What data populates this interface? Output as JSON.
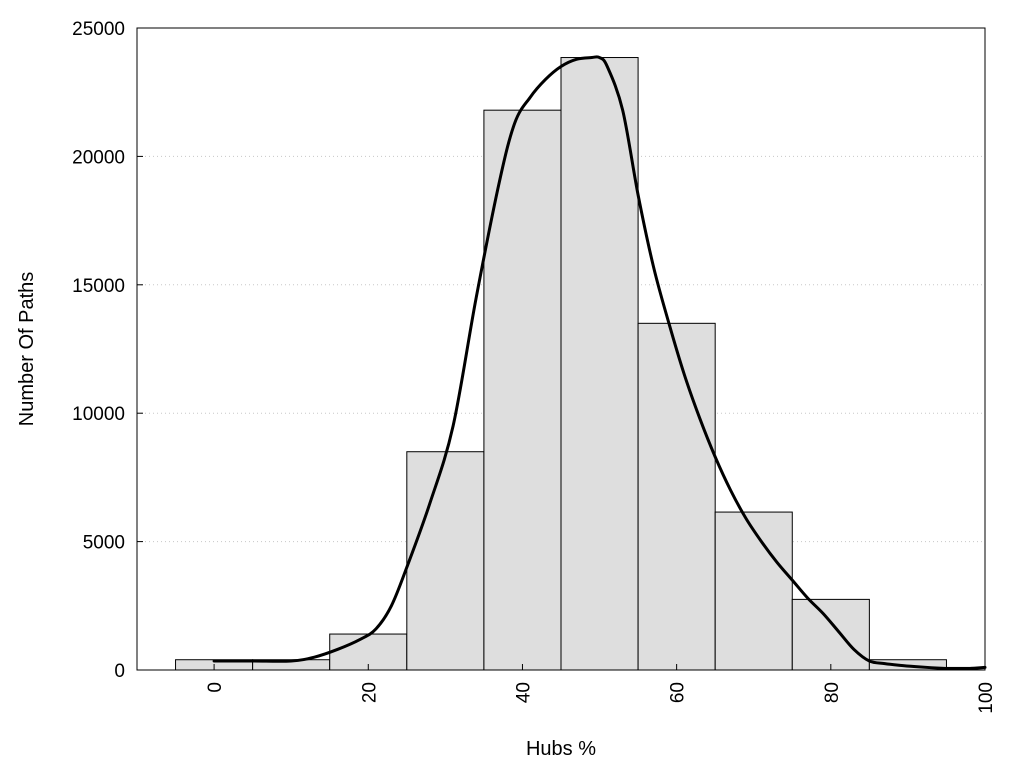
{
  "chart_data": {
    "type": "bar",
    "xlabel": "Hubs %",
    "ylabel": "Number Of Paths",
    "xlim": [
      -10,
      100
    ],
    "ylim": [
      0,
      25000
    ],
    "x_ticks": [
      0,
      20,
      40,
      60,
      80,
      100
    ],
    "y_ticks": [
      0,
      5000,
      10000,
      15000,
      20000,
      25000
    ],
    "grid": "horizontal dotted",
    "bin_width": 10,
    "bins": [
      {
        "center": 0,
        "value": 400
      },
      {
        "center": 10,
        "value": 400
      },
      {
        "center": 20,
        "value": 1400
      },
      {
        "center": 30,
        "value": 8500
      },
      {
        "center": 40,
        "value": 21800
      },
      {
        "center": 50,
        "value": 23850
      },
      {
        "center": 60,
        "value": 13500
      },
      {
        "center": 70,
        "value": 6150
      },
      {
        "center": 80,
        "value": 2750
      },
      {
        "center": 90,
        "value": 400
      },
      {
        "center": 100,
        "value": 100
      }
    ],
    "density_curve": {
      "x": [
        0,
        5,
        10,
        13,
        16,
        19,
        21,
        23,
        25,
        28,
        31,
        34,
        37,
        39,
        41,
        43,
        45,
        47,
        49,
        50,
        51,
        53,
        55,
        57,
        59,
        61,
        63,
        65,
        67,
        69,
        71,
        73,
        75,
        77,
        79,
        81,
        83,
        85,
        87,
        89,
        91,
        93,
        95,
        97,
        100
      ],
      "y": [
        350,
        350,
        350,
        500,
        800,
        1200,
        1600,
        2500,
        4000,
        6500,
        9500,
        14500,
        19000,
        21300,
        22300,
        23000,
        23500,
        23780,
        23850,
        23850,
        23500,
        21800,
        18500,
        15700,
        13500,
        11500,
        9800,
        8300,
        7000,
        5900,
        5000,
        4200,
        3500,
        2800,
        2200,
        1500,
        800,
        350,
        250,
        180,
        130,
        90,
        60,
        40,
        100
      ]
    },
    "color": "#dedede",
    "curve_color": "#000000"
  }
}
